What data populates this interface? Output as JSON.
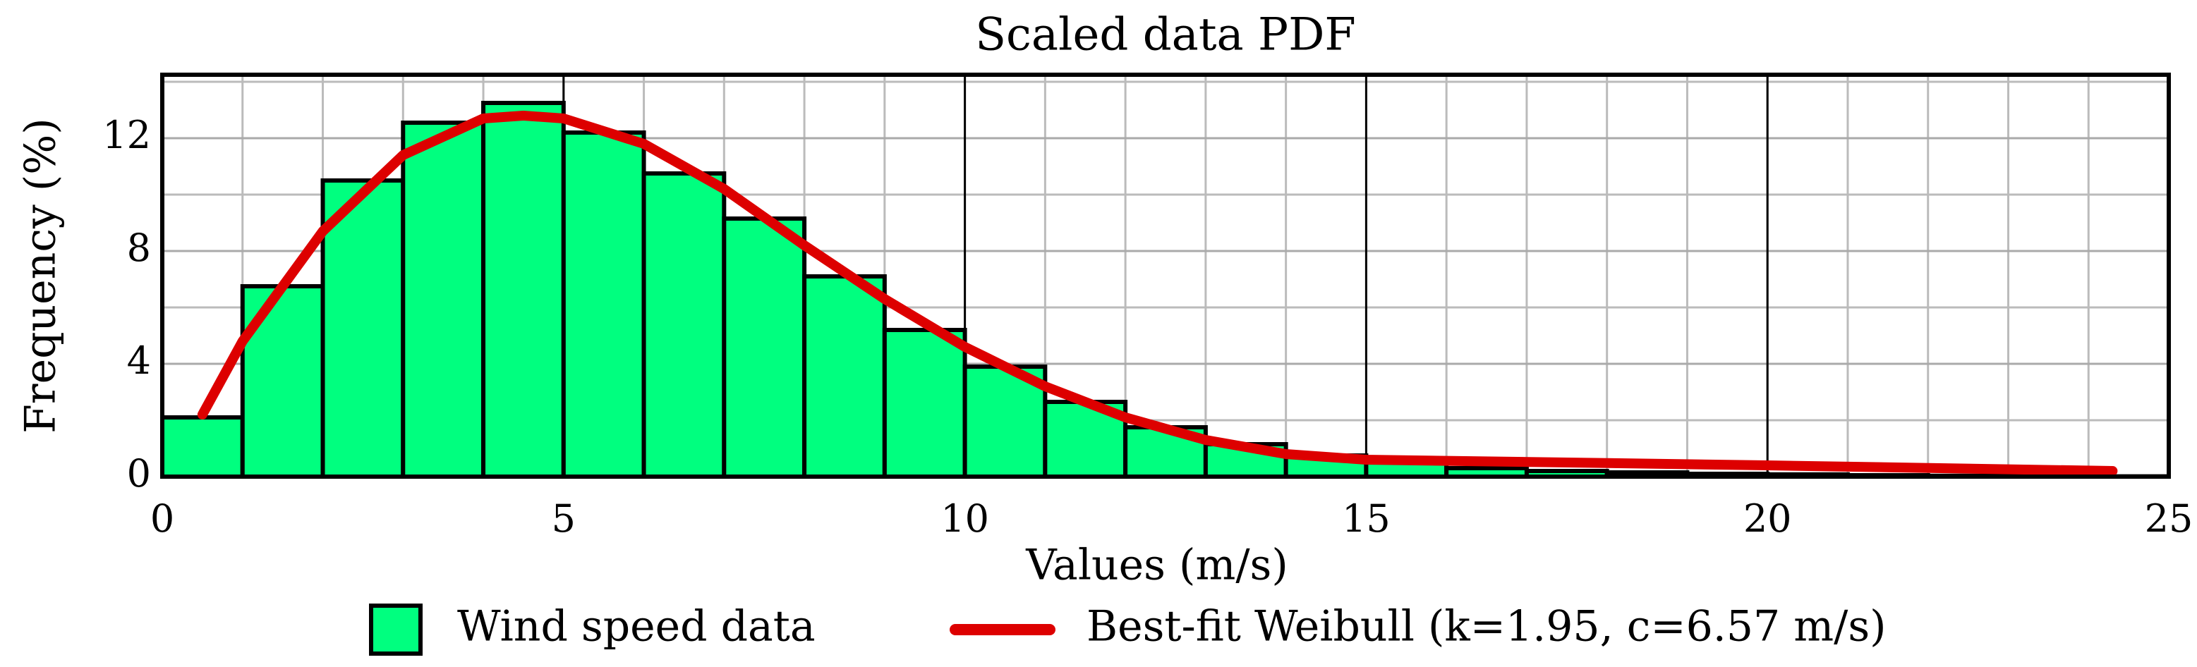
{
  "chart_data": {
    "type": "histogram",
    "title": "Scaled data PDF",
    "xlabel": "Values (m/s)",
    "ylabel": "Frequency (%)",
    "name": "Wind speed data",
    "color": "#00ff7f",
    "bins": [
      0,
      1,
      2,
      3,
      4,
      5,
      6,
      7,
      8,
      9,
      10,
      11,
      12,
      13,
      14,
      15,
      16,
      17,
      18,
      19,
      20,
      21,
      22,
      23,
      24,
      25
    ],
    "values": [
      2.1,
      6.75,
      10.5,
      12.55,
      13.25,
      12.2,
      10.75,
      9.15,
      7.1,
      5.2,
      3.9,
      2.65,
      1.75,
      1.15,
      0.75,
      0.5,
      0.3,
      0.2,
      0.15,
      0.1,
      0.08,
      0.05,
      0.03,
      0.02,
      0.01
    ],
    "lines": [
      {
        "type": "line",
        "name": "Best-fit Weibull (k=1.95, c=6.57 m/s)",
        "color": "#dd0000",
        "x": [
          0.5,
          1,
          2,
          3,
          4,
          4.5,
          5,
          6,
          7,
          8,
          9,
          10,
          11,
          12,
          13,
          14,
          15,
          20,
          24.3
        ],
        "values": [
          2.2,
          4.8,
          8.7,
          11.4,
          12.7,
          12.8,
          12.7,
          11.8,
          10.2,
          8.2,
          6.3,
          4.6,
          3.2,
          2.1,
          1.3,
          0.8,
          0.6,
          0.4,
          0.2
        ]
      }
    ],
    "xlim": [
      0,
      25
    ],
    "ylim": [
      0,
      14.25
    ],
    "xticks": [
      0,
      5,
      10,
      15,
      20,
      25
    ],
    "yticks": [
      0,
      4,
      8,
      12
    ],
    "grid": true,
    "minor_grid": {
      "x": 1,
      "y": 2
    },
    "legend": "bottom"
  }
}
